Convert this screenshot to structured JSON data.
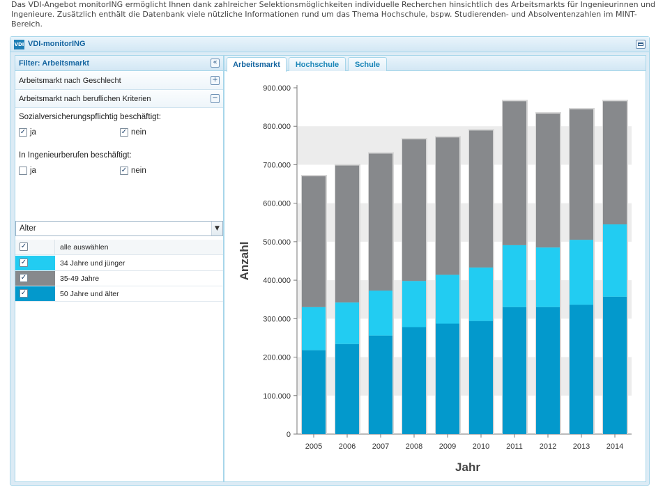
{
  "intro_text": "Das VDI-Angebot monitorING ermöglicht Ihnen dank zahlreicher Selektionsmöglichkeiten individuelle Recherchen hinsichtlich des Arbeitsmarkts für Ingenieurinnen und Ingenieure. Zusätzlich enthält die Datenbank viele nützliche Informationen rund um das Thema Hochschule, bspw. Studierenden- und Absolventenzahlen im MINT-Bereich.",
  "panel": {
    "logo_text": "VDI",
    "title": "VDI-monitorING",
    "maximize_icon": "maximize-icon"
  },
  "filter": {
    "title": "Filter: Arbeitsmarkt",
    "collapse_glyph": "«",
    "accordion": [
      {
        "label": "Arbeitsmarkt nach Geschlecht",
        "toggle": "+"
      },
      {
        "label": "Arbeitsmarkt nach beruflichen Kriterien",
        "toggle": "−"
      }
    ],
    "sv_label": "Sozialversicherungspflichtig beschäftigt:",
    "sv_ja": "ja",
    "sv_nein": "nein",
    "sv_ja_checked": "✓",
    "sv_nein_checked": "✓",
    "ing_label": "In Ingenieurberufen beschäftigt:",
    "ing_ja": "ja",
    "ing_nein": "nein",
    "ing_ja_checked": "",
    "ing_nein_checked": "✓",
    "select_value": "Alter",
    "select_arrow": "▼",
    "select_all": "alle auswählen",
    "check": "✓",
    "age_groups": [
      {
        "label": "34 Jahre und jünger",
        "color": "#22ccf2"
      },
      {
        "label": "35-49 Jahre",
        "color": "#87898c"
      },
      {
        "label": "50 Jahre und älter",
        "color": "#0399cc"
      }
    ]
  },
  "tabs": [
    {
      "label": "Arbeitsmarkt",
      "active": true
    },
    {
      "label": "Hochschule",
      "active": false
    },
    {
      "label": "Schule",
      "active": false
    }
  ],
  "chart_data": {
    "type": "bar",
    "stacked": true,
    "xlabel": "Jahr",
    "ylabel": "Anzahl",
    "ylim": [
      0,
      900000
    ],
    "yticks": [
      0,
      100000,
      200000,
      300000,
      400000,
      500000,
      600000,
      700000,
      800000,
      900000
    ],
    "ytick_labels": [
      "0",
      "100.000",
      "200.000",
      "300.000",
      "400.000",
      "500.000",
      "600.000",
      "700.000",
      "800.000",
      "900.000"
    ],
    "grid": "alternating horizontal bands",
    "categories": [
      "2005",
      "2006",
      "2007",
      "2008",
      "2009",
      "2010",
      "2011",
      "2012",
      "2013",
      "2014"
    ],
    "series": [
      {
        "color": "#0399cc",
        "values": [
          218000,
          234000,
          256000,
          278000,
          287000,
          294000,
          330000,
          330000,
          336000,
          357000
        ]
      },
      {
        "color": "#22ccf2",
        "values": [
          112000,
          108000,
          117000,
          120000,
          127000,
          139000,
          161000,
          155000,
          169000,
          188000
        ]
      },
      {
        "color": "#87898c",
        "values": [
          340000,
          356000,
          356000,
          368000,
          357000,
          356000,
          374000,
          348000,
          339000,
          320000
        ]
      }
    ]
  }
}
